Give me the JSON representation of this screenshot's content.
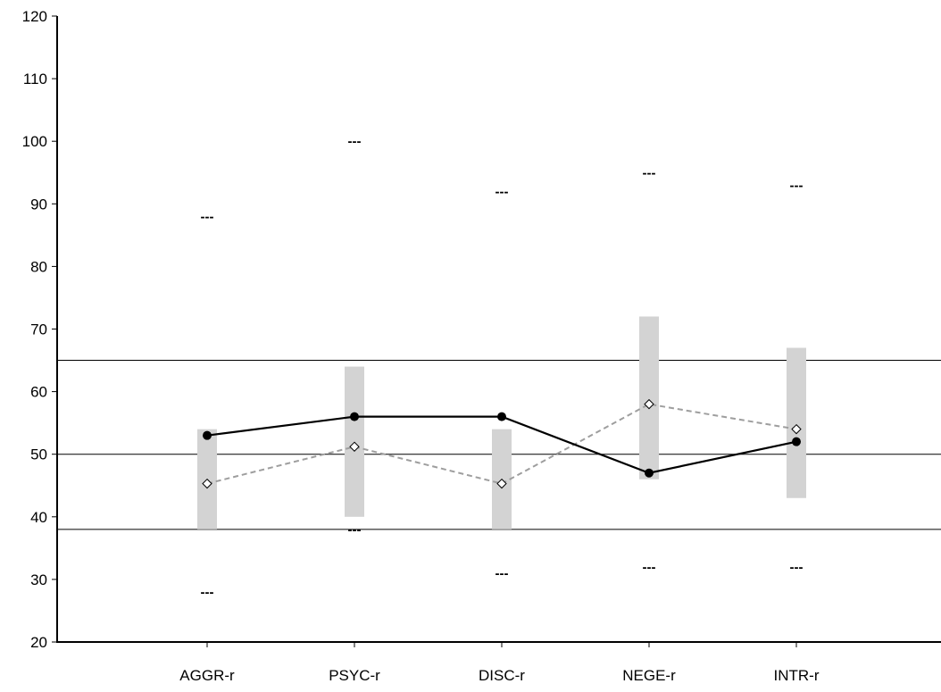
{
  "chart_data": {
    "type": "line",
    "categories": [
      "AGGR-r",
      "PSYC-r",
      "DISC-r",
      "NEGE-r",
      "INTR-r"
    ],
    "ylim": [
      20,
      120
    ],
    "yticks": [
      20,
      30,
      40,
      50,
      60,
      70,
      80,
      90,
      100,
      110,
      120
    ],
    "title": "",
    "xlabel": "",
    "ylabel": "",
    "reference_lines": [
      65,
      50,
      38
    ],
    "range_bars": [
      {
        "low": 38,
        "high": 54
      },
      {
        "low": 40,
        "high": 64
      },
      {
        "low": 38,
        "high": 54
      },
      {
        "low": 46,
        "high": 72
      },
      {
        "low": 43,
        "high": 67
      }
    ],
    "dash_markers": {
      "label": "---",
      "upper": [
        88,
        100,
        92,
        95,
        93
      ],
      "lower": [
        28,
        38,
        31,
        32,
        32
      ]
    },
    "series": [
      {
        "values": [
          53,
          56,
          56,
          47,
          52
        ],
        "line_style": "solid",
        "marker": "filled-circle",
        "color": "#000000"
      },
      {
        "values": [
          45.3,
          51.2,
          45.3,
          58,
          54
        ],
        "line_style": "dashed",
        "marker": "open-diamond",
        "color": "#9e9e9e"
      }
    ],
    "grid": false,
    "colors": {
      "axis": "#000000",
      "range_bar": "#d3d3d3",
      "reference_line": "#000000"
    }
  }
}
